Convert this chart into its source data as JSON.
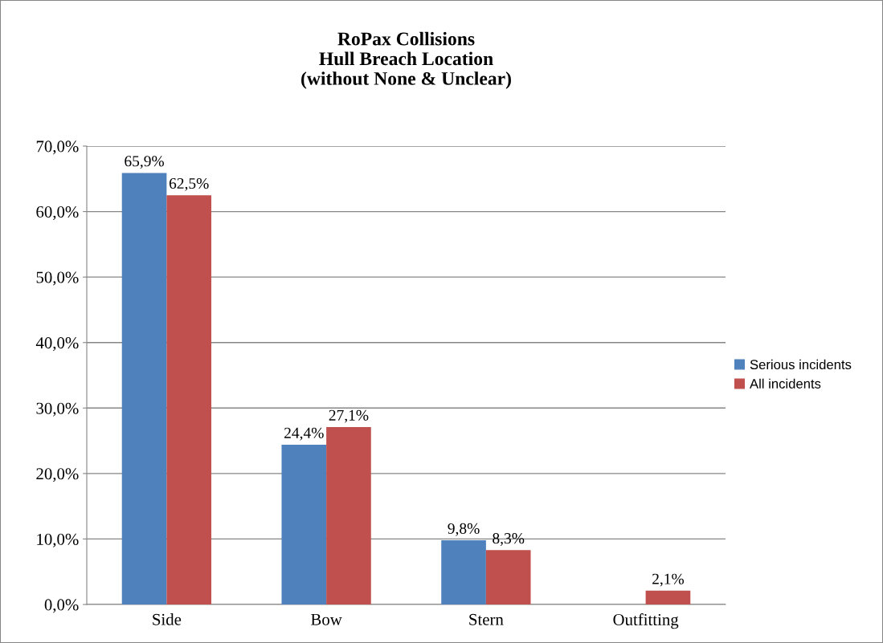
{
  "chart_data": {
    "type": "bar",
    "title": "RoPax Collisions\nHull Breach Location\n(without None & Unclear)",
    "categories": [
      "Side",
      "Bow",
      "Stern",
      "Outfitting"
    ],
    "series": [
      {
        "name": "Serious incidents",
        "color": "#4f81bd",
        "values": [
          65.9,
          24.4,
          9.8,
          0
        ],
        "value_labels": [
          "65,9%",
          "24,4%",
          "9,8%",
          null
        ]
      },
      {
        "name": "All incidents",
        "color": "#c0504d",
        "values": [
          62.5,
          27.1,
          8.3,
          2.1
        ],
        "value_labels": [
          "62,5%",
          "27,1%",
          "8,3%",
          "2,1%"
        ]
      }
    ],
    "ylim": [
      0,
      70
    ],
    "yticks": [
      {
        "value": 0,
        "label": "0,0%"
      },
      {
        "value": 10,
        "label": "10,0%"
      },
      {
        "value": 20,
        "label": "20,0%"
      },
      {
        "value": 30,
        "label": "30,0%"
      },
      {
        "value": 40,
        "label": "40,0%"
      },
      {
        "value": 50,
        "label": "50,0%"
      },
      {
        "value": 60,
        "label": "60,0%"
      },
      {
        "value": 70,
        "label": "70,0%"
      }
    ],
    "grid": "y",
    "legend": "right"
  }
}
